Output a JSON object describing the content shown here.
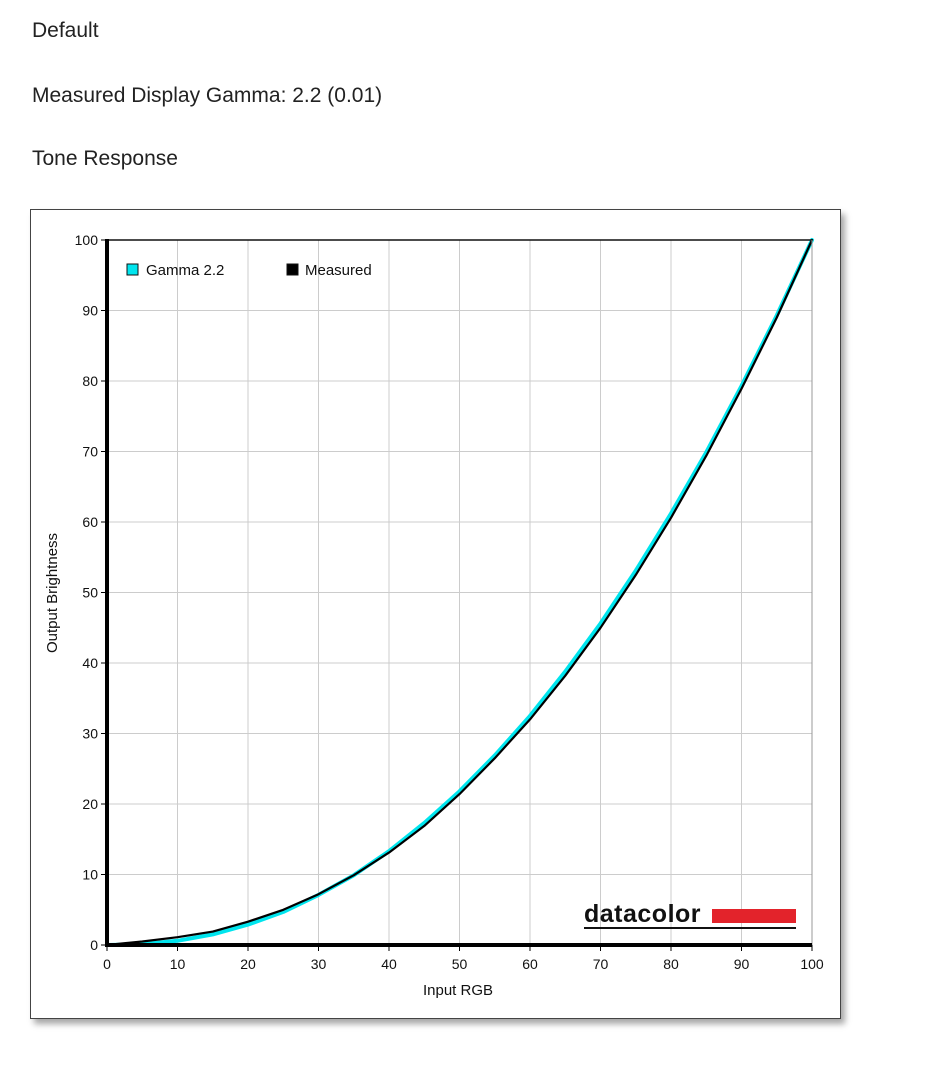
{
  "page": {
    "profile_name": "Default",
    "gamma_text": "Measured Display Gamma: 2.2 (0.01)",
    "section_title": "Tone Response"
  },
  "branding": {
    "logo_text": "datacolor",
    "logo_bar_color": "#e3232b"
  },
  "chart_data": {
    "type": "line",
    "xlabel": "Input RGB",
    "ylabel": "Output Brightness",
    "xlim": [
      0,
      100
    ],
    "ylim": [
      0,
      100
    ],
    "x_ticks": [
      0,
      10,
      20,
      30,
      40,
      50,
      60,
      70,
      80,
      90,
      100
    ],
    "y_ticks": [
      0,
      10,
      20,
      30,
      40,
      50,
      60,
      70,
      80,
      90,
      100
    ],
    "grid": true,
    "legend_position": "top-left",
    "series": [
      {
        "name": "Gamma 2.2",
        "color": "#00e5ee",
        "x": [
          0,
          5,
          10,
          15,
          20,
          25,
          30,
          35,
          40,
          45,
          50,
          55,
          60,
          65,
          70,
          75,
          80,
          85,
          90,
          95,
          100
        ],
        "y": [
          0,
          0.1,
          0.6,
          1.5,
          2.9,
          4.7,
          7.1,
          9.9,
          13.3,
          17.3,
          21.8,
          26.9,
          32.5,
          38.8,
          45.6,
          53.1,
          61.2,
          69.9,
          79.3,
          89.3,
          100
        ]
      },
      {
        "name": "Measured",
        "color": "#000000",
        "x": [
          0,
          5,
          10,
          15,
          20,
          25,
          30,
          35,
          40,
          45,
          50,
          55,
          60,
          65,
          70,
          75,
          80,
          85,
          90,
          95,
          100
        ],
        "y": [
          0,
          0.5,
          1.1,
          1.9,
          3.3,
          5.0,
          7.2,
          9.9,
          13.1,
          16.9,
          21.4,
          26.5,
          32.0,
          38.2,
          45.0,
          52.5,
          60.6,
          69.4,
          78.9,
          89.0,
          100
        ]
      }
    ]
  }
}
